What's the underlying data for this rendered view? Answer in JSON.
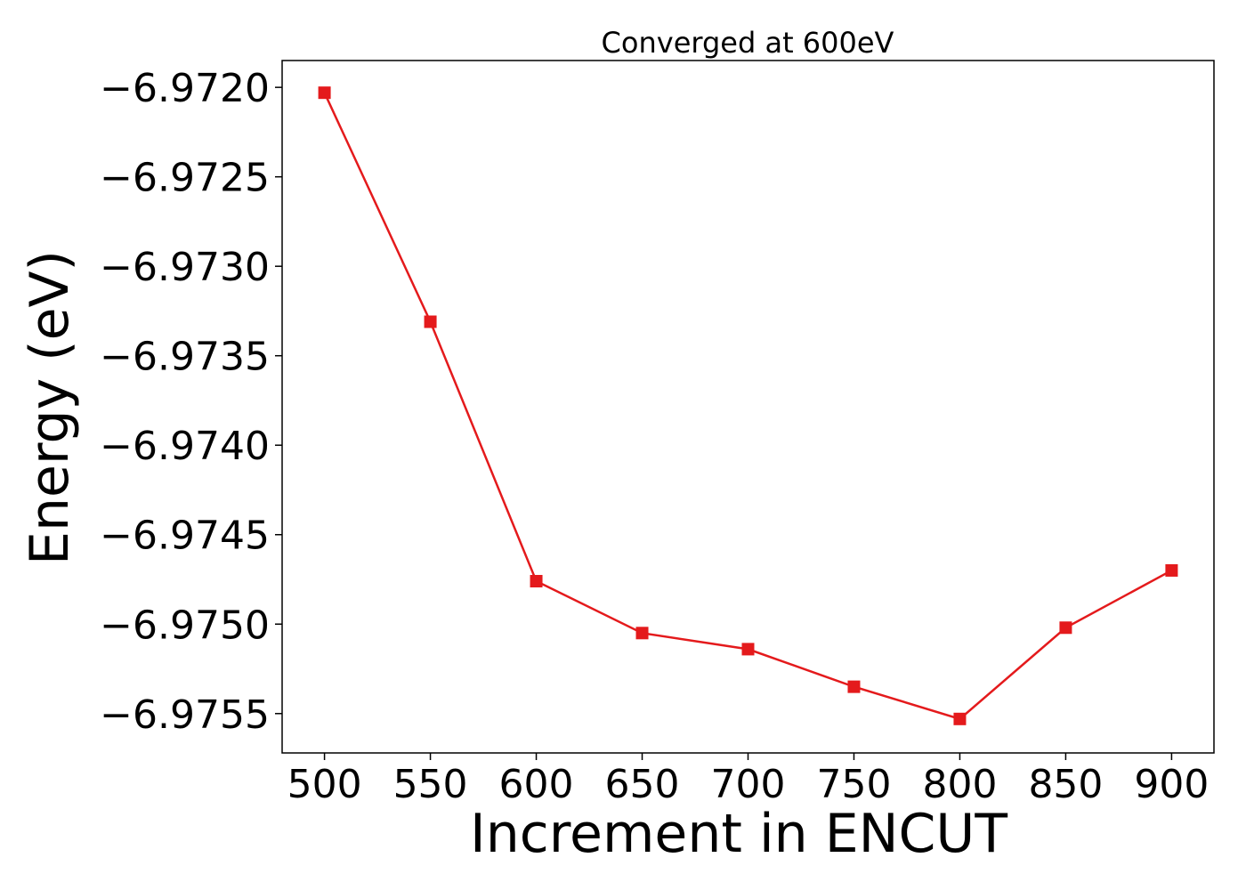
{
  "chart_data": {
    "type": "line",
    "title": "Converged at 600eV",
    "xlabel": "Increment in ENCUT",
    "ylabel": "Energy (eV)",
    "x": [
      500,
      550,
      600,
      650,
      700,
      750,
      800,
      850,
      900
    ],
    "series": [
      {
        "values": [
          -6.97203,
          -6.97331,
          -6.97476,
          -6.97505,
          -6.97514,
          -6.97535,
          -6.97553,
          -6.97502,
          -6.9747
        ],
        "color": "#e41a1c",
        "marker": "square"
      }
    ],
    "xlim": [
      480,
      920
    ],
    "ylim": [
      -6.97572,
      -6.97185
    ],
    "xticks": [
      500,
      550,
      600,
      650,
      700,
      750,
      800,
      850,
      900
    ],
    "yticks": [
      -6.972,
      -6.9725,
      -6.973,
      -6.9735,
      -6.974,
      -6.9745,
      -6.975,
      -6.9755
    ],
    "ytick_labels": [
      "−6.9720",
      "−6.9725",
      "−6.9730",
      "−6.9735",
      "−6.9740",
      "−6.9745",
      "−6.9750",
      "−6.9755"
    ],
    "grid": false,
    "legend": "none"
  }
}
